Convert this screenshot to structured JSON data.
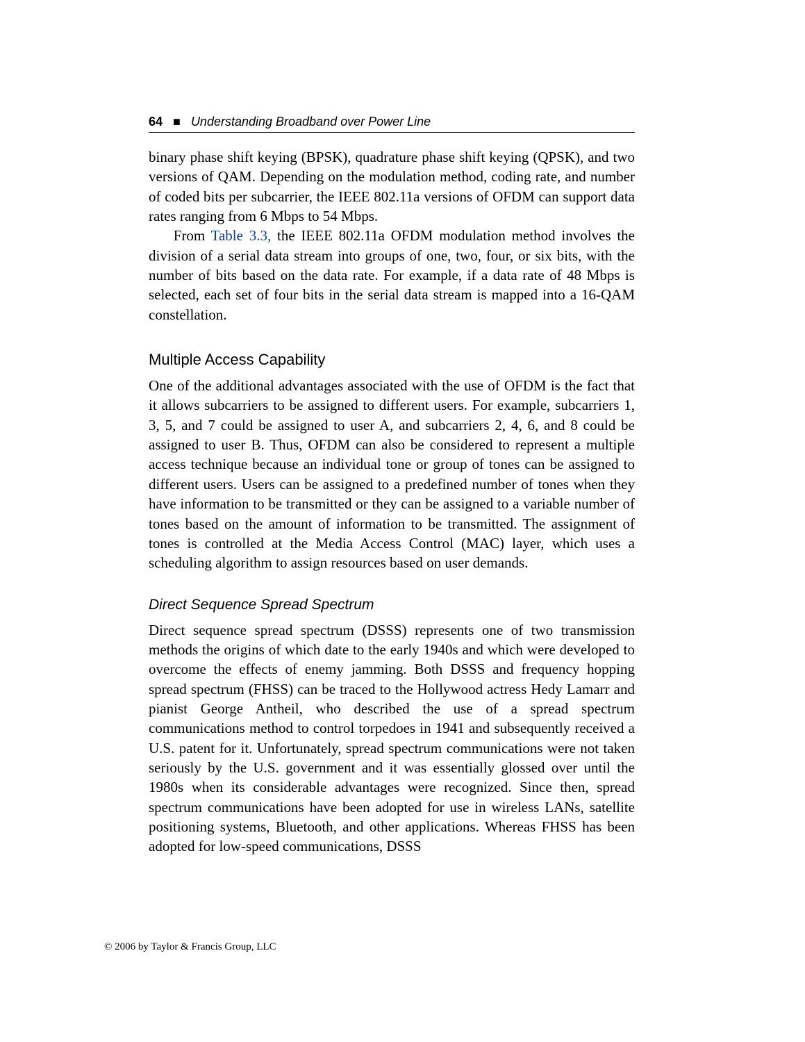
{
  "header": {
    "page_number": "64",
    "marker": "■",
    "running_title": "Understanding Broadband over Power Line"
  },
  "paragraphs": {
    "p1": "binary phase shift keying (BPSK), quadrature phase shift keying (QPSK), and two versions of QAM. Depending on the modulation method, coding rate, and number of coded bits per subcarrier, the IEEE 802.11a versions of OFDM can support data rates ranging from 6 Mbps to 54 Mbps.",
    "p2_prefix": "From ",
    "p2_link": "Table 3.3,",
    "p2_rest": " the IEEE 802.11a OFDM modulation method involves the division of a serial data stream into groups of one, two, four, or six bits, with the number of bits based on the data rate. For example, if a data rate of 48 Mbps is selected, each set of four bits in the serial data stream is mapped into a 16-QAM constellation."
  },
  "sections": {
    "multiple_access": {
      "heading": "Multiple Access Capability",
      "body": "One of the additional advantages associated with the use of OFDM is the fact that it allows subcarriers to be assigned to different users. For example, subcarriers 1, 3, 5, and 7 could be assigned to user A, and subcarriers 2, 4, 6, and 8 could be assigned to user B. Thus, OFDM can also be considered to represent a multiple access technique because an individual tone or group of tones can be assigned to different users. Users can be assigned to a predefined number of tones when they have information to be transmitted or they can be assigned to a variable number of tones based on the amount of information to be transmitted. The assignment of tones is controlled at the Media Access Control (MAC) layer, which uses a scheduling algorithm to assign resources based on user demands."
    },
    "dsss": {
      "heading": "Direct Sequence Spread Spectrum",
      "body": "Direct sequence spread spectrum (DSSS) represents one of two transmission methods the origins of which date to the early 1940s and which were developed to overcome the effects of enemy jamming. Both DSSS and frequency hopping spread spectrum (FHSS) can be traced to the Hollywood actress Hedy Lamarr and pianist George Antheil, who described the use of a spread spectrum communications method to control torpedoes in 1941 and subsequently received a U.S. patent for it. Unfortunately, spread spectrum communications were not taken seriously by the U.S. government and it was essentially glossed over until the 1980s when its considerable advantages were recognized. Since then, spread spectrum communications have been adopted for use in wireless LANs, satellite positioning systems, Bluetooth, and other applications. Whereas FHSS has been adopted for low-speed communications, DSSS"
    }
  },
  "footer": "© 2006 by Taylor & Francis Group, LLC"
}
